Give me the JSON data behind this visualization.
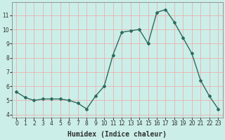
{
  "x": [
    0,
    1,
    2,
    3,
    4,
    5,
    6,
    7,
    8,
    9,
    10,
    11,
    12,
    13,
    14,
    15,
    16,
    17,
    18,
    19,
    20,
    21,
    22,
    23
  ],
  "y": [
    5.6,
    5.2,
    5.0,
    5.1,
    5.1,
    5.1,
    5.0,
    4.8,
    4.4,
    5.3,
    6.0,
    8.2,
    9.8,
    9.9,
    10.0,
    9.0,
    11.2,
    11.4,
    10.5,
    9.4,
    8.3,
    6.4,
    5.3,
    4.4
  ],
  "line_color": "#2d6b5e",
  "marker": "D",
  "markersize": 2.0,
  "background_color": "#cceee8",
  "grid_color": "#e8b0b0",
  "xlabel": "Humidex (Indice chaleur)",
  "ylim": [
    3.8,
    11.9
  ],
  "xlim": [
    -0.5,
    23.5
  ],
  "yticks": [
    4,
    5,
    6,
    7,
    8,
    9,
    10,
    11
  ],
  "xticks": [
    0,
    1,
    2,
    3,
    4,
    5,
    6,
    7,
    8,
    9,
    10,
    11,
    12,
    13,
    14,
    15,
    16,
    17,
    18,
    19,
    20,
    21,
    22,
    23
  ],
  "tick_fontsize": 5.5,
  "xlabel_fontsize": 7.0,
  "linewidth": 1.0
}
